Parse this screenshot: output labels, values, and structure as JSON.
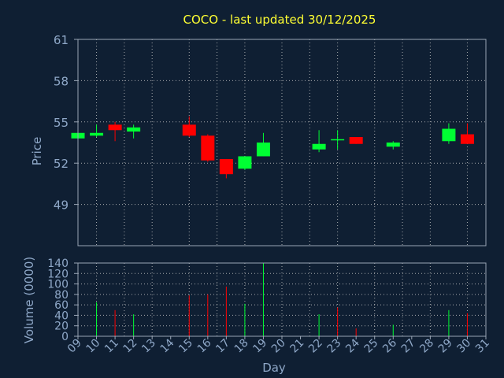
{
  "colors": {
    "background": "#0f1f33",
    "title": "#ffff33",
    "axis_text": "#8fa8c8",
    "axis_line": "#9aa6b6",
    "grid": "#c0c0c0",
    "up": "#00ff33",
    "down": "#ff0000"
  },
  "chart_data": {
    "type": "candlestick",
    "title": "COCO - last updated 30/12/2025",
    "xlabel": "Day",
    "price_axis": {
      "ylabel": "Price",
      "ylim": [
        46,
        61
      ],
      "ticks": [
        49,
        52,
        55,
        58,
        61
      ]
    },
    "volume_axis": {
      "ylabel": "Volume (0000)",
      "ylim": [
        0,
        140
      ],
      "ticks": [
        0,
        20,
        40,
        60,
        80,
        100,
        120,
        140
      ]
    },
    "x_range": [
      9,
      31
    ],
    "x_tick_labels": [
      "09",
      "10",
      "11",
      "12",
      "13",
      "14",
      "15",
      "16",
      "17",
      "18",
      "19",
      "20",
      "21",
      "22",
      "23",
      "24",
      "25",
      "26",
      "27",
      "28",
      "29",
      "30",
      "31"
    ],
    "vertical_grid_days": [
      10,
      11.5,
      13,
      15,
      16.5,
      18,
      20,
      21.5,
      23,
      25,
      26.5,
      28,
      30
    ],
    "grid": true,
    "candles": [
      {
        "day": 9,
        "open": 53.8,
        "high": 54.2,
        "low": 53.7,
        "close": 54.2
      },
      {
        "day": 10,
        "open": 54.0,
        "high": 54.8,
        "low": 53.9,
        "close": 54.2
      },
      {
        "day": 11,
        "open": 54.8,
        "high": 55.0,
        "low": 53.6,
        "close": 54.4
      },
      {
        "day": 12,
        "open": 54.3,
        "high": 54.8,
        "low": 53.8,
        "close": 54.6
      },
      {
        "day": 15,
        "open": 54.8,
        "high": 55.4,
        "low": 53.9,
        "close": 54.0
      },
      {
        "day": 16,
        "open": 54.0,
        "high": 54.1,
        "low": 52.1,
        "close": 52.2
      },
      {
        "day": 17,
        "open": 52.3,
        "high": 52.3,
        "low": 50.9,
        "close": 51.2
      },
      {
        "day": 18,
        "open": 51.6,
        "high": 52.5,
        "low": 51.5,
        "close": 52.5
      },
      {
        "day": 19,
        "open": 52.5,
        "high": 54.2,
        "low": 52.5,
        "close": 53.5
      },
      {
        "day": 22,
        "open": 53.0,
        "high": 54.4,
        "low": 52.8,
        "close": 53.4
      },
      {
        "day": 23,
        "open": 53.7,
        "high": 54.4,
        "low": 53.0,
        "close": 53.7
      },
      {
        "day": 24,
        "open": 53.9,
        "high": 53.9,
        "low": 53.4,
        "close": 53.4
      },
      {
        "day": 26,
        "open": 53.2,
        "high": 53.6,
        "low": 53.0,
        "close": 53.5
      },
      {
        "day": 29,
        "open": 53.6,
        "high": 54.9,
        "low": 53.4,
        "close": 54.5
      },
      {
        "day": 30,
        "open": 54.1,
        "high": 54.9,
        "low": 53.4,
        "close": 53.4
      }
    ],
    "volumes": [
      {
        "day": 9,
        "value": 0,
        "dir": "up"
      },
      {
        "day": 10,
        "value": 65,
        "dir": "up"
      },
      {
        "day": 11,
        "value": 50,
        "dir": "down"
      },
      {
        "day": 12,
        "value": 42,
        "dir": "up"
      },
      {
        "day": 15,
        "value": 78,
        "dir": "down"
      },
      {
        "day": 16,
        "value": 80,
        "dir": "down"
      },
      {
        "day": 17,
        "value": 95,
        "dir": "down"
      },
      {
        "day": 18,
        "value": 62,
        "dir": "up"
      },
      {
        "day": 19,
        "value": 140,
        "dir": "up"
      },
      {
        "day": 22,
        "value": 42,
        "dir": "up"
      },
      {
        "day": 23,
        "value": 55,
        "dir": "down"
      },
      {
        "day": 24,
        "value": 15,
        "dir": "down"
      },
      {
        "day": 26,
        "value": 22,
        "dir": "up"
      },
      {
        "day": 29,
        "value": 50,
        "dir": "up"
      },
      {
        "day": 30,
        "value": 44,
        "dir": "down"
      }
    ]
  }
}
